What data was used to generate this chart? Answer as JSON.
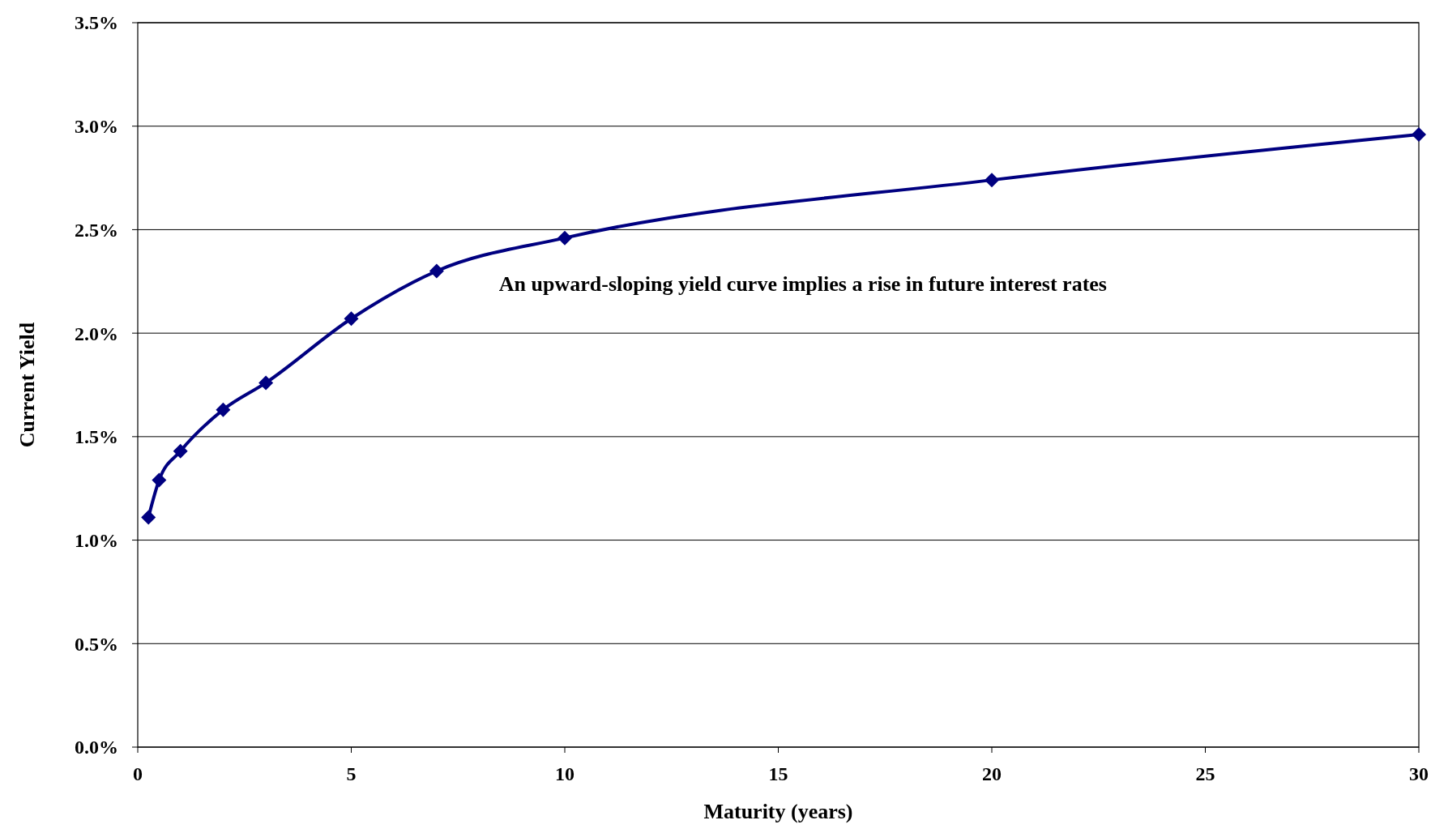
{
  "chart_data": {
    "type": "line",
    "xlabel": "Maturity (years)",
    "ylabel": "Current Yield",
    "annotations": [
      "An upward-sloping yield curve implies a rise in future interest rates"
    ],
    "x": [
      0.25,
      0.5,
      1,
      2,
      3,
      5,
      7,
      10,
      20,
      30
    ],
    "series": [
      {
        "color": "#000080",
        "values": [
          1.11,
          1.29,
          1.43,
          1.63,
          1.76,
          2.07,
          2.3,
          2.46,
          2.74,
          2.96
        ]
      }
    ],
    "xlim": [
      0,
      30
    ],
    "xticks": [
      0,
      5,
      10,
      15,
      20,
      25,
      30
    ],
    "ylim": [
      0,
      3.5
    ],
    "yticks": [
      {
        "value": 0,
        "label": "0.0%"
      },
      {
        "value": 0.5,
        "label": "0.5%"
      },
      {
        "value": 1,
        "label": "1.0%"
      },
      {
        "value": 1.5,
        "label": "1.5%"
      },
      {
        "value": 2,
        "label": "2.0%"
      },
      {
        "value": 2.5,
        "label": "2.5%"
      },
      {
        "value": 3,
        "label": "3.0%"
      },
      {
        "value": 3.5,
        "label": "3.5%"
      }
    ],
    "grid": "y",
    "marker": "diamond",
    "line_style": "solid"
  }
}
